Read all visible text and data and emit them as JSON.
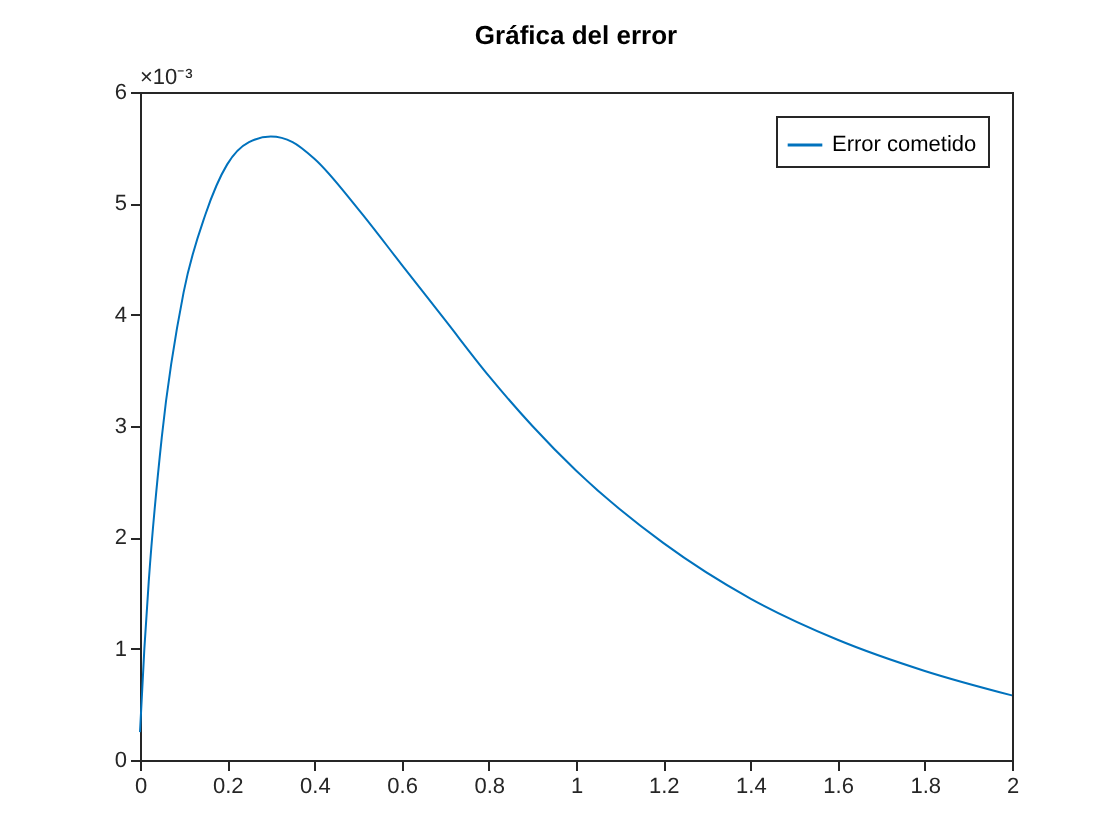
{
  "chart_data": {
    "type": "line",
    "title": "Gráfica del error",
    "x": [
      0,
      0.01,
      0.02,
      0.05,
      0.1,
      0.15,
      0.2,
      0.25,
      0.3,
      0.35,
      0.4,
      0.5,
      0.6,
      0.7,
      0.8,
      0.9,
      1.0,
      1.2,
      1.4,
      1.6,
      1.8,
      2.0
    ],
    "series": [
      {
        "name": "Error cometido",
        "color": "#0072bd",
        "values": [
          0.25,
          1.0,
          1.6,
          2.9,
          4.2,
          4.9,
          5.35,
          5.55,
          5.6,
          5.55,
          5.4,
          4.95,
          4.45,
          3.95,
          3.45,
          3.0,
          2.6,
          1.95,
          1.45,
          1.08,
          0.8,
          0.58
        ]
      }
    ],
    "xlim": [
      0,
      2
    ],
    "xticks": [
      0,
      0.2,
      0.4,
      0.6,
      0.8,
      1,
      1.2,
      1.4,
      1.6,
      1.8,
      2
    ],
    "ylim": [
      0,
      6
    ],
    "yticks": [
      0,
      1,
      2,
      3,
      4,
      5,
      6
    ],
    "annotations": [
      "×10⁻³"
    ],
    "grid": false,
    "legend": "top right"
  }
}
